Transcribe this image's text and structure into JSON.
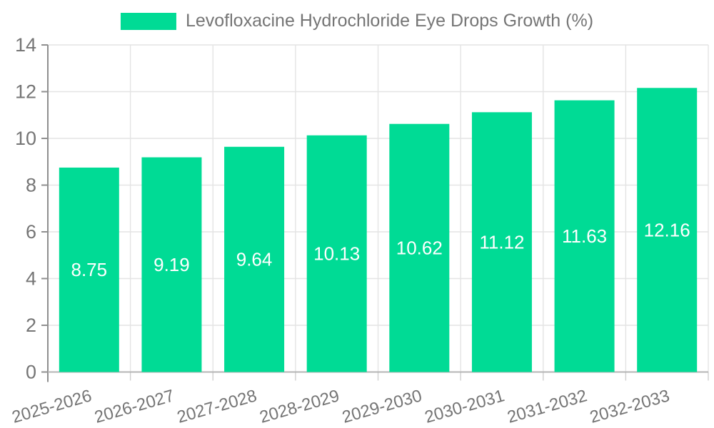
{
  "legend": {
    "label": "Levofloxacine Hydrochloride Eye Drops Growth (%)"
  },
  "chart_data": {
    "type": "bar",
    "title": "Levofloxacine Hydrochloride Eye Drops Growth (%)",
    "series_name": "Levofloxacine Hydrochloride Eye Drops Growth (%)",
    "categories": [
      "2025-2026",
      "2026-2027",
      "2027-2028",
      "2028-2029",
      "2029-2030",
      "2030-2031",
      "2031-2032",
      "2032-2033"
    ],
    "values": [
      8.75,
      9.19,
      9.64,
      10.13,
      10.62,
      11.12,
      11.63,
      12.16
    ],
    "value_labels": [
      "8.75",
      "9.19",
      "9.64",
      "10.13",
      "10.62",
      "11.12",
      "11.63",
      "12.16"
    ],
    "xlabel": "",
    "ylabel": "",
    "ylim": [
      0,
      14
    ],
    "ytick_step": 2,
    "ytick_labels": [
      "0",
      "2",
      "4",
      "6",
      "8",
      "10",
      "12",
      "14"
    ],
    "grid": true,
    "legend_position": "top-center",
    "bar_color": "#00DB95",
    "bar_label_color": "#ffffff",
    "axis_text_color": "#757575",
    "grid_color": "#e4e4e4",
    "y_axis_line_color": "#8f8f8f",
    "x_axis_line_color": "#b4b4b4",
    "x_tick_color": "#cfcfcf"
  }
}
